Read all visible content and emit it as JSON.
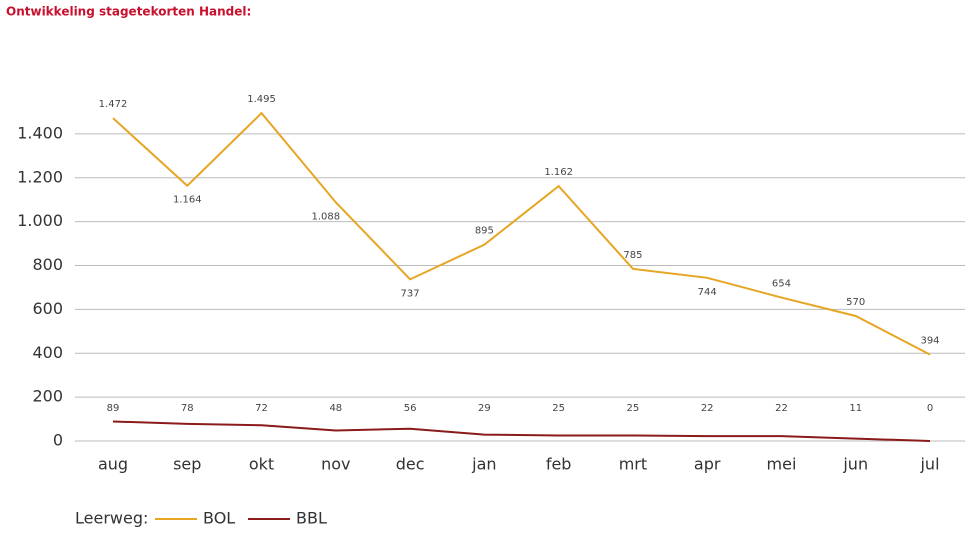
{
  "chart_data": {
    "type": "line",
    "title": "Ontwikkeling stagetekorten Handel:",
    "categories": [
      "aug",
      "sep",
      "okt",
      "nov",
      "dec",
      "jan",
      "feb",
      "mrt",
      "apr",
      "mei",
      "jun",
      "jul"
    ],
    "series": [
      {
        "name": "BOL",
        "color": "#e6a522",
        "values": [
          1472,
          1164,
          1495,
          1088,
          737,
          895,
          1162,
          785,
          744,
          654,
          570,
          394
        ],
        "value_labels": [
          "1.472",
          "1.164",
          "1.495",
          "1.088",
          "737",
          "895",
          "1.162",
          "785",
          "744",
          "654",
          "570",
          "394"
        ]
      },
      {
        "name": "BBL",
        "color": "#8b1a1a",
        "values": [
          89,
          78,
          72,
          48,
          56,
          29,
          25,
          25,
          22,
          22,
          11,
          0
        ]
      }
    ],
    "legend_title": "Leerweg:",
    "ylim": [
      0,
      1500
    ],
    "yticks": [
      0,
      200,
      400,
      600,
      800,
      {
        "value": 1000,
        "label": "1.000"
      },
      {
        "value": 1200,
        "label": "1.200"
      },
      {
        "value": 1400,
        "label": "1.400"
      }
    ],
    "grid": true,
    "legend": "bottom-left"
  }
}
